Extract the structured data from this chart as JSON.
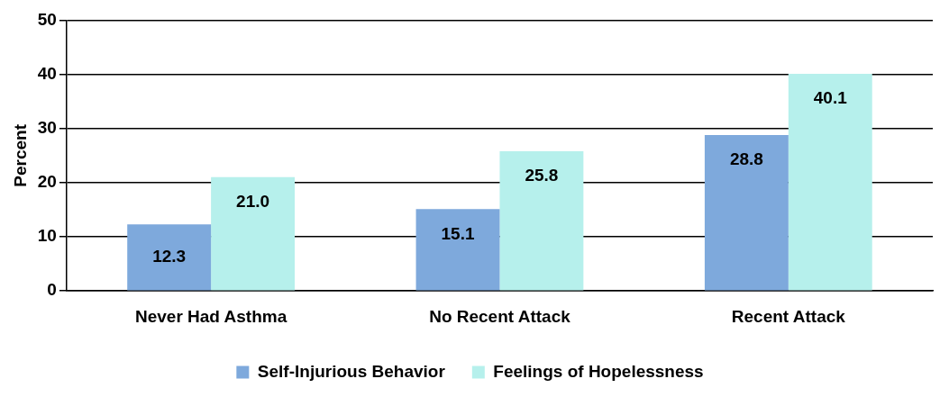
{
  "chart_data": {
    "type": "bar",
    "ylabel": "Percent",
    "categories": [
      "Never Had Asthma",
      "No Recent Attack",
      "Recent Attack"
    ],
    "series": [
      {
        "name": "Self-Injurious Behavior",
        "color": "#7ea9dc",
        "values": [
          12.3,
          15.1,
          28.8
        ],
        "value_labels": [
          "12.3",
          "15.1",
          "28.8"
        ]
      },
      {
        "name": "Feelings of Hopelessness",
        "color": "#b6f0ec",
        "values": [
          21.0,
          25.8,
          40.1
        ],
        "value_labels": [
          "21.0",
          "25.8",
          "40.1"
        ]
      }
    ],
    "ylim": [
      0,
      50
    ],
    "yticks": [
      0,
      10,
      20,
      30,
      40,
      50
    ],
    "grid": "y",
    "legend": "bottom"
  }
}
